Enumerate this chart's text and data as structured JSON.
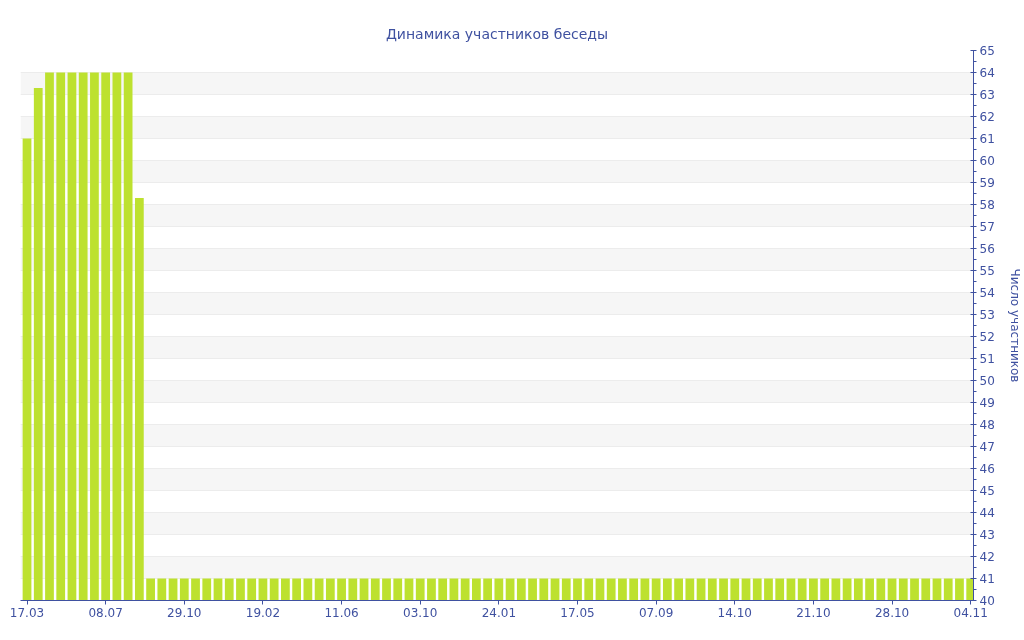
{
  "chart_data": {
    "type": "bar",
    "title": "Динамика участников беседы",
    "ylabel": "Число участников",
    "categories": [
      "17.03",
      null,
      null,
      null,
      null,
      null,
      null,
      "08.07",
      null,
      null,
      null,
      null,
      null,
      null,
      "29.10",
      null,
      null,
      null,
      null,
      null,
      null,
      "19.02",
      null,
      null,
      null,
      null,
      null,
      null,
      "11.06",
      null,
      null,
      null,
      null,
      null,
      null,
      "03.10",
      null,
      null,
      null,
      null,
      null,
      null,
      "24.01",
      null,
      null,
      null,
      null,
      null,
      null,
      "17.05",
      null,
      null,
      null,
      null,
      null,
      null,
      "07.09",
      null,
      null,
      null,
      null,
      null,
      null,
      "14.10",
      null,
      null,
      null,
      null,
      null,
      null,
      "21.10",
      null,
      null,
      null,
      null,
      null,
      null,
      "28.10",
      null,
      null,
      null,
      null,
      null,
      null,
      "04.11"
    ],
    "values": [
      61,
      63.3,
      64,
      64,
      64,
      64,
      64,
      64,
      64,
      64,
      58.3,
      41,
      41,
      41,
      41,
      41,
      41,
      41,
      41,
      41,
      41,
      41,
      41,
      41,
      41,
      41,
      41,
      41,
      41,
      41,
      41,
      41,
      41,
      41,
      41,
      41,
      41,
      41,
      41,
      41,
      41,
      41,
      41,
      41,
      41,
      41,
      41,
      41,
      41,
      41,
      41,
      41,
      41,
      41,
      41,
      41,
      41,
      41,
      41,
      41,
      41,
      41,
      41,
      41,
      41,
      41,
      41,
      41,
      41,
      41,
      41,
      41,
      41,
      41,
      41,
      41,
      41,
      41,
      41,
      41,
      41,
      41,
      41,
      41,
      41
    ],
    "color": "#bde12f",
    "ylim": [
      40,
      65
    ],
    "yticks": [
      40,
      41,
      42,
      43,
      44,
      45,
      46,
      47,
      48,
      49,
      50,
      51,
      52,
      53,
      54,
      55,
      56,
      57,
      58,
      59,
      60,
      61,
      62,
      63,
      64,
      65
    ],
    "grid": "y"
  }
}
